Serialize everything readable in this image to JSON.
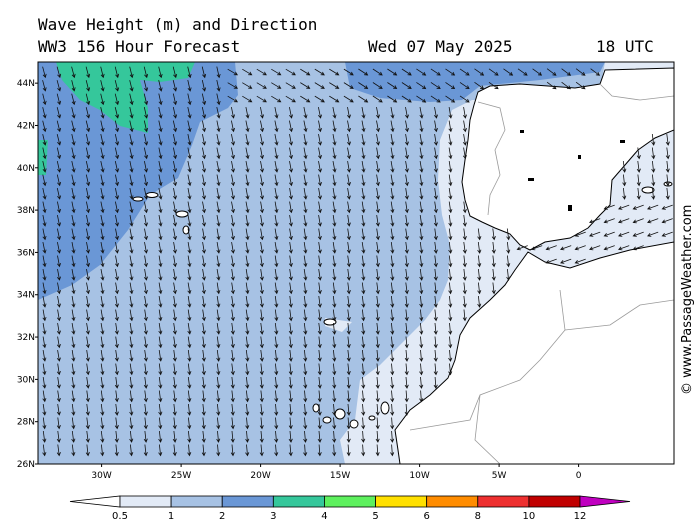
{
  "title": {
    "line1": "Wave Height (m) and Direction",
    "line2_left": "WW3 156 Hour Forecast",
    "line2_date": "Wed 07 May 2025",
    "line2_time": "18 UTC"
  },
  "credit": "© www.PassageWeather.com",
  "map": {
    "lon_range": [
      -34,
      6
    ],
    "lat_range": [
      26,
      45
    ],
    "lat_ticks": [
      {
        "lat": 44,
        "label": "44N"
      },
      {
        "lat": 42,
        "label": "42N"
      },
      {
        "lat": 40,
        "label": "40N"
      },
      {
        "lat": 38,
        "label": "38N"
      },
      {
        "lat": 36,
        "label": "36N"
      },
      {
        "lat": 34,
        "label": "34N"
      },
      {
        "lat": 32,
        "label": "32N"
      },
      {
        "lat": 30,
        "label": "30N"
      },
      {
        "lat": 28,
        "label": "28N"
      },
      {
        "lat": 26,
        "label": "26N"
      }
    ],
    "lon_ticks": [
      {
        "lon": -30,
        "label": "30W"
      },
      {
        "lon": -25,
        "label": "25W"
      },
      {
        "lon": -20,
        "label": "20W"
      },
      {
        "lon": -15,
        "label": "15W"
      },
      {
        "lon": -10,
        "label": "10W"
      },
      {
        "lon": -5,
        "label": "5W"
      },
      {
        "lon": 0,
        "label": "0"
      }
    ],
    "colors": {
      "h0_5_1": "#e2eaf6",
      "h1_2": "#a7c2e4",
      "h2_3": "#6a97d6",
      "h3_4": "#35c79b",
      "land": "#ffffff",
      "coast": "#000000",
      "border": "#9a9a9a"
    }
  },
  "colorbar": {
    "labels": [
      "0.5",
      "1",
      "2",
      "3",
      "4",
      "5",
      "6",
      "8",
      "10",
      "12"
    ],
    "colors": [
      "#e2eaf6",
      "#a7c2e4",
      "#6a97d6",
      "#35c79b",
      "#5ef05e",
      "#ffe000",
      "#ff8c00",
      "#ee3030",
      "#c00000",
      "#c000c0"
    ]
  }
}
